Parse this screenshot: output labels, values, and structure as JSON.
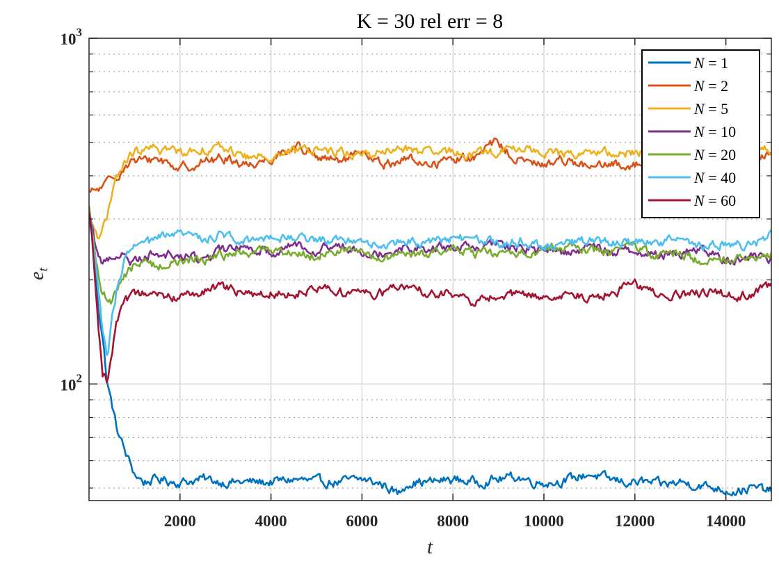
{
  "chart_data": {
    "type": "line",
    "title": "K = 30 rel err = 8",
    "xlabel": "t",
    "ylabel": "e_t",
    "ylabel_main": "e",
    "ylabel_sub": "t",
    "xlim": [
      0,
      15000
    ],
    "ylim": [
      46,
      1000
    ],
    "yscale": "log",
    "xticks": [
      2000,
      4000,
      6000,
      8000,
      10000,
      12000,
      14000
    ],
    "xtick_labels": [
      "2000",
      "4000",
      "6000",
      "8000",
      "10000",
      "12000",
      "14000"
    ],
    "yticks": [
      {
        "value": 100,
        "base": "10",
        "exp": "2"
      },
      {
        "value": 1000,
        "base": "10",
        "exp": "3"
      }
    ],
    "grid": true,
    "legend_position": "top-right",
    "series": [
      {
        "name": "N = 1",
        "var": "N",
        "value_label": "1",
        "color": "#0072BD",
        "x": [
          0,
          200,
          400,
          600,
          800,
          1000,
          1200,
          1500,
          2000,
          2500,
          3000,
          3500,
          4000,
          4500,
          5000,
          5500,
          6000,
          6500,
          6800,
          7000,
          7500,
          8000,
          8500,
          9000,
          9400,
          9800,
          10200,
          10600,
          11000,
          11400,
          11800,
          12200,
          12600,
          13000,
          13400,
          13800,
          14200,
          14600,
          15000
        ],
        "y": [
          310,
          170,
          100,
          75,
          63,
          55,
          52,
          53,
          52,
          53,
          52,
          52,
          52,
          53,
          52,
          52,
          53,
          51,
          48,
          52,
          52,
          53,
          52,
          53,
          54,
          52,
          52,
          53,
          55,
          53,
          52,
          52,
          51,
          52,
          51,
          50,
          49,
          50,
          49
        ]
      },
      {
        "name": "N = 2",
        "var": "N",
        "value_label": "2",
        "color": "#D95319",
        "x": [
          0,
          300,
          600,
          900,
          1200,
          1500,
          2000,
          2500,
          3000,
          3500,
          4000,
          4600,
          5000,
          5500,
          6000,
          6500,
          7000,
          7500,
          8000,
          8500,
          8900,
          9500,
          10000,
          10500,
          11000,
          11500,
          12000,
          12500,
          13000,
          13500,
          14000,
          14500,
          15000
        ],
        "y": [
          355,
          370,
          400,
          440,
          440,
          450,
          420,
          440,
          450,
          430,
          450,
          490,
          450,
          440,
          460,
          430,
          450,
          430,
          450,
          450,
          500,
          440,
          430,
          450,
          420,
          430,
          430,
          450,
          440,
          440,
          430,
          440,
          470
        ]
      },
      {
        "name": "N = 5",
        "var": "N",
        "value_label": "5",
        "color": "#EDB120",
        "x": [
          0,
          200,
          400,
          600,
          800,
          1000,
          1200,
          1500,
          2000,
          2500,
          3000,
          3500,
          4000,
          4500,
          5000,
          5500,
          6000,
          6500,
          7000,
          7500,
          8000,
          8500,
          9000,
          9500,
          10000,
          10500,
          11000,
          11500,
          12000,
          12500,
          13000,
          13500,
          14000,
          14500,
          15000
        ],
        "y": [
          300,
          270,
          300,
          390,
          440,
          470,
          470,
          480,
          470,
          480,
          480,
          450,
          460,
          470,
          480,
          470,
          460,
          470,
          480,
          460,
          470,
          460,
          470,
          480,
          470,
          460,
          470,
          460,
          470,
          470,
          480,
          470,
          470,
          480,
          480
        ]
      },
      {
        "name": "N = 10",
        "var": "N",
        "value_label": "10",
        "color": "#7E2F8E",
        "x": [
          0,
          150,
          300,
          500,
          700,
          900,
          1200,
          1500,
          2000,
          2500,
          3000,
          3500,
          4000,
          4500,
          5000,
          5500,
          6000,
          6500,
          7000,
          7500,
          8000,
          8500,
          9000,
          9500,
          10000,
          10500,
          11000,
          11500,
          12000,
          12500,
          13000,
          13500,
          14000,
          14500,
          15000
        ],
        "y": [
          320,
          250,
          220,
          235,
          240,
          225,
          235,
          240,
          235,
          230,
          245,
          250,
          240,
          255,
          245,
          250,
          245,
          240,
          250,
          245,
          250,
          245,
          255,
          245,
          245,
          240,
          250,
          240,
          245,
          235,
          240,
          245,
          225,
          235,
          230
        ]
      },
      {
        "name": "N = 20",
        "var": "N",
        "value_label": "20",
        "color": "#77AC30",
        "x": [
          0,
          150,
          300,
          500,
          700,
          900,
          1200,
          1500,
          2000,
          2500,
          3000,
          3500,
          4000,
          4500,
          5000,
          5500,
          6000,
          6500,
          7000,
          7500,
          8000,
          8500,
          9000,
          9500,
          10000,
          10500,
          11000,
          11500,
          12000,
          12500,
          13000,
          13500,
          14000,
          14500,
          15000
        ],
        "y": [
          320,
          220,
          180,
          175,
          200,
          215,
          225,
          220,
          225,
          230,
          235,
          240,
          245,
          240,
          235,
          245,
          240,
          230,
          235,
          240,
          245,
          240,
          235,
          240,
          245,
          250,
          245,
          240,
          250,
          235,
          240,
          225,
          230,
          235,
          240
        ]
      },
      {
        "name": "N = 40",
        "var": "N",
        "value_label": "40",
        "color": "#4DBEEE",
        "x": [
          0,
          150,
          300,
          400,
          500,
          650,
          800,
          1000,
          1300,
          1600,
          2000,
          2500,
          3000,
          3500,
          4000,
          4500,
          5000,
          5500,
          6000,
          6500,
          7000,
          7500,
          8000,
          8500,
          9000,
          9500,
          10000,
          10500,
          11000,
          11500,
          12000,
          12500,
          13000,
          13500,
          14000,
          14500,
          15000
        ],
        "y": [
          320,
          220,
          140,
          115,
          150,
          200,
          230,
          250,
          255,
          265,
          270,
          265,
          270,
          260,
          270,
          265,
          260,
          265,
          260,
          250,
          260,
          255,
          265,
          260,
          255,
          260,
          250,
          255,
          260,
          255,
          260,
          255,
          265,
          250,
          255,
          250,
          270
        ]
      },
      {
        "name": "N = 60",
        "var": "N",
        "value_label": "60",
        "color": "#A2142F",
        "x": [
          0,
          100,
          200,
          300,
          400,
          500,
          600,
          800,
          1000,
          1300,
          1600,
          2000,
          2500,
          3000,
          3500,
          4000,
          4500,
          5000,
          5500,
          6000,
          6500,
          7000,
          7500,
          8000,
          8500,
          9000,
          9500,
          10000,
          10500,
          11000,
          11500,
          12000,
          12500,
          13000,
          13500,
          14000,
          14500,
          15000
        ],
        "y": [
          320,
          230,
          150,
          110,
          102,
          120,
          150,
          170,
          180,
          182,
          178,
          180,
          185,
          190,
          180,
          185,
          182,
          192,
          185,
          182,
          185,
          190,
          183,
          182,
          170,
          183,
          180,
          178,
          185,
          175,
          185,
          192,
          182,
          180,
          183,
          182,
          180,
          192
        ]
      }
    ]
  }
}
